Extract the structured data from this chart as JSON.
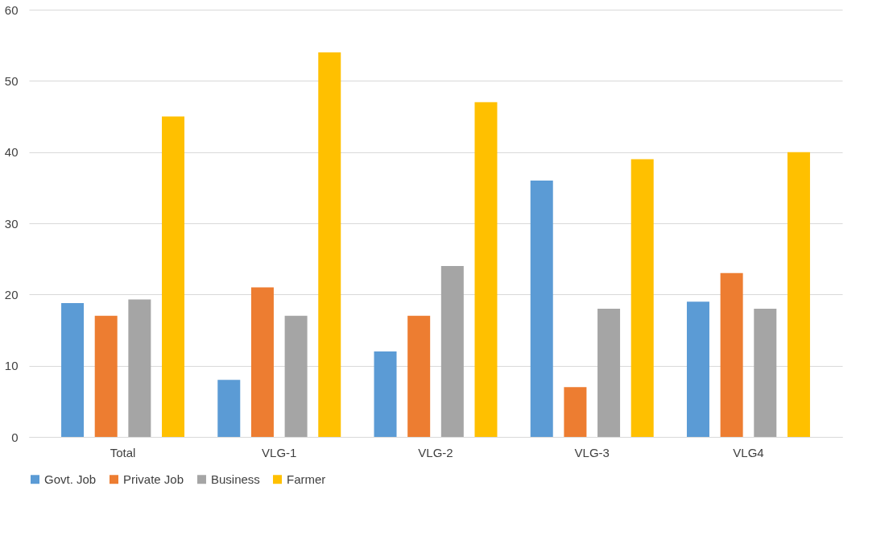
{
  "chart_data": {
    "type": "bar",
    "categories": [
      "Total",
      "VLG-1",
      "VLG-2",
      "VLG-3",
      "VLG4"
    ],
    "series": [
      {
        "name": "Govt. Job",
        "color": "#5b9bd5",
        "values": [
          18.8,
          8,
          12,
          36,
          19
        ]
      },
      {
        "name": "Private Job",
        "color": "#ed7d31",
        "values": [
          17,
          21,
          17,
          7,
          23
        ]
      },
      {
        "name": "Business",
        "color": "#a5a5a5",
        "values": [
          19.3,
          17,
          24,
          18,
          18
        ]
      },
      {
        "name": "Farmer",
        "color": "#ffc000",
        "values": [
          45,
          54,
          47,
          39,
          40
        ]
      }
    ],
    "ylim": [
      0,
      60
    ],
    "yticks": [
      0,
      10,
      20,
      30,
      40,
      50,
      60
    ],
    "grid": "y",
    "legend": "bottom"
  }
}
